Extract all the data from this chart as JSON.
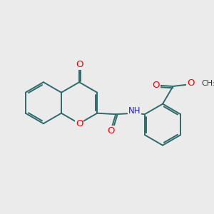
{
  "background_color": "#ebebeb",
  "bond_color": "#2d6b6b",
  "bond_width": 1.4,
  "atom_colors": {
    "O": "#ff0000",
    "N": "#2222cc",
    "C": "#2d6b6b"
  },
  "font_size": 8.5,
  "fig_size": [
    3.0,
    3.0
  ],
  "dpi": 100
}
